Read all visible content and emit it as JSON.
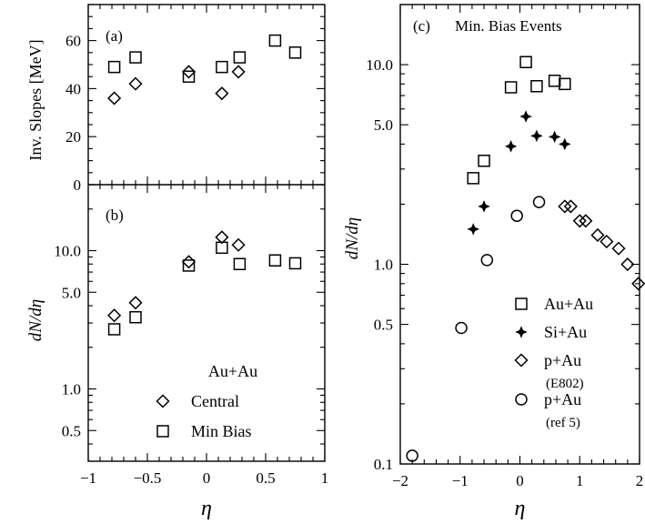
{
  "chart_data": [
    {
      "panel": "(a)",
      "type": "scatter",
      "ylabel": "Inv. Slopes [MeV]",
      "ylim": [
        0,
        75
      ],
      "xlim": [
        -1,
        1
      ],
      "yticks": [
        "0",
        "20",
        "40",
        "60"
      ],
      "series": [
        {
          "name": "Central",
          "marker": "diamond",
          "points": [
            [
              -0.78,
              36
            ],
            [
              -0.6,
              42
            ],
            [
              -0.15,
              47
            ],
            [
              0.13,
              38
            ],
            [
              0.27,
              47
            ]
          ]
        },
        {
          "name": "Min Bias",
          "marker": "square",
          "points": [
            [
              -0.78,
              49
            ],
            [
              -0.6,
              53
            ],
            [
              -0.15,
              45
            ],
            [
              0.13,
              49
            ],
            [
              0.28,
              53
            ],
            [
              0.58,
              60
            ],
            [
              0.75,
              55
            ]
          ]
        }
      ]
    },
    {
      "panel": "(b)",
      "type": "scatter",
      "ylabel": "dN/dη",
      "xlabel": "η",
      "yscale": "log",
      "ylim": [
        0.3,
        30
      ],
      "xlim": [
        -1,
        1
      ],
      "yticks": [
        "0.5",
        "1.0",
        "5.0",
        "10.0"
      ],
      "xticks": [
        "−1",
        "−0.5",
        "0",
        "0.5",
        "1"
      ],
      "annotation": "Au+Au",
      "legend": [
        {
          "marker": "diamond",
          "label": "Central"
        },
        {
          "marker": "square",
          "label": "Min Bias"
        }
      ],
      "series": [
        {
          "name": "Central",
          "marker": "diamond",
          "points": [
            [
              -0.78,
              3.4
            ],
            [
              -0.6,
              4.2
            ],
            [
              -0.15,
              8.3
            ],
            [
              0.13,
              12.5
            ],
            [
              0.27,
              11.0
            ]
          ]
        },
        {
          "name": "Min Bias",
          "marker": "square",
          "points": [
            [
              -0.78,
              2.7
            ],
            [
              -0.6,
              3.3
            ],
            [
              -0.15,
              7.8
            ],
            [
              0.13,
              10.5
            ],
            [
              0.28,
              8.0
            ],
            [
              0.58,
              8.5
            ],
            [
              0.75,
              8.1
            ]
          ]
        }
      ]
    },
    {
      "panel": "(c)",
      "title": "Min. Bias Events",
      "type": "scatter",
      "ylabel": "dN/dη",
      "xlabel": "η",
      "yscale": "log",
      "ylim": [
        0.1,
        20
      ],
      "xlim": [
        -2,
        2
      ],
      "yticks": [
        "0.1",
        "0.5",
        "1.0",
        "5.0",
        "10.0"
      ],
      "xticks": [
        "−2",
        "−1",
        "0",
        "1",
        "2"
      ],
      "legend": [
        {
          "marker": "square",
          "label": "Au+Au"
        },
        {
          "marker": "star",
          "label": "Si+Au"
        },
        {
          "marker": "diamond",
          "label": "p+Au",
          "sub": "(E802)"
        },
        {
          "marker": "circle",
          "label": "p+Au",
          "sub": "(ref 5)"
        }
      ],
      "series": [
        {
          "name": "Au+Au",
          "marker": "square",
          "points": [
            [
              -0.78,
              2.7
            ],
            [
              -0.6,
              3.3
            ],
            [
              -0.15,
              7.7
            ],
            [
              0.1,
              10.3
            ],
            [
              0.28,
              7.8
            ],
            [
              0.58,
              8.3
            ],
            [
              0.75,
              8.0
            ]
          ]
        },
        {
          "name": "Si+Au",
          "marker": "star",
          "points": [
            [
              -0.78,
              1.5
            ],
            [
              -0.6,
              1.95
            ],
            [
              -0.15,
              3.9
            ],
            [
              0.1,
              5.5
            ],
            [
              0.28,
              4.4
            ],
            [
              0.58,
              4.35
            ],
            [
              0.75,
              4.0
            ]
          ]
        },
        {
          "name": "p+Au (E802)",
          "marker": "diamond",
          "points": [
            [
              0.75,
              1.95
            ],
            [
              0.85,
              1.95
            ],
            [
              1.0,
              1.65
            ],
            [
              1.1,
              1.65
            ],
            [
              1.3,
              1.4
            ],
            [
              1.45,
              1.3
            ],
            [
              1.65,
              1.2
            ],
            [
              1.8,
              1.0
            ],
            [
              1.98,
              0.8
            ]
          ]
        },
        {
          "name": "p+Au (ref 5)",
          "marker": "circle",
          "points": [
            [
              -1.8,
              0.11
            ],
            [
              -0.98,
              0.48
            ],
            [
              -0.55,
              1.05
            ],
            [
              -0.05,
              1.75
            ],
            [
              0.32,
              2.05
            ]
          ]
        }
      ]
    }
  ]
}
